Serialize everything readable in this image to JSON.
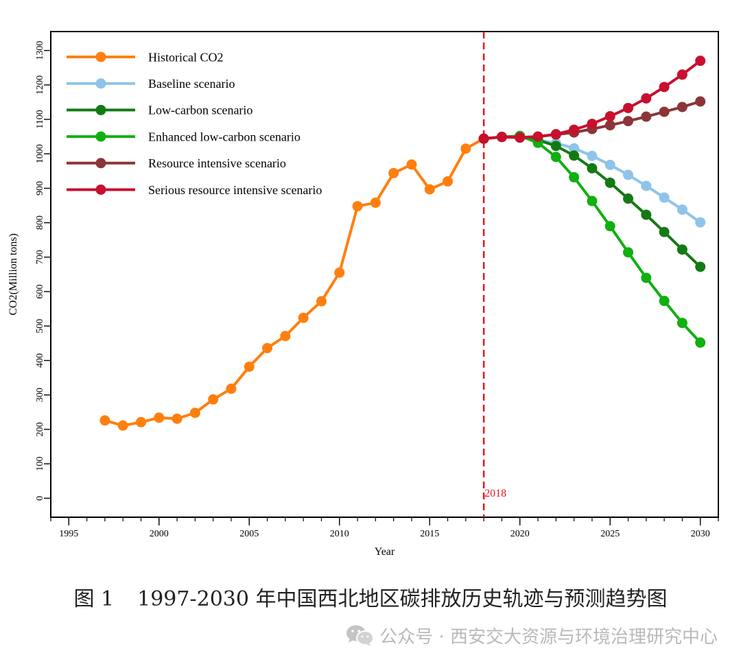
{
  "chart_data": {
    "type": "line",
    "xlabel": "Year",
    "ylabel": "CO2(Million tons)",
    "xlim": [
      1994,
      2031
    ],
    "ylim": [
      -55,
      1355
    ],
    "xticks": [
      1995,
      2000,
      2005,
      2010,
      2015,
      2020,
      2025,
      2030
    ],
    "yticks": [
      0,
      100,
      200,
      300,
      400,
      500,
      600,
      700,
      800,
      900,
      1000,
      1100,
      1200,
      1300
    ],
    "grid": false,
    "legend_position": "top-left",
    "annotation": {
      "x": 2018,
      "label": "2018",
      "style": "dashed",
      "color": "#e8141c"
    },
    "series": [
      {
        "name": "Historical CO2",
        "color": "#ff7f0e",
        "x": [
          1997,
          1998,
          1999,
          2000,
          2001,
          2002,
          2003,
          2004,
          2005,
          2006,
          2007,
          2008,
          2009,
          2010,
          2011,
          2012,
          2013,
          2014,
          2015,
          2016,
          2017,
          2018
        ],
        "values": [
          226,
          211,
          221,
          234,
          231,
          248,
          287,
          318,
          382,
          436,
          471,
          524,
          572,
          655,
          848,
          858,
          944,
          969,
          897,
          920,
          1015,
          1044
        ]
      },
      {
        "name": "Baseline scenario",
        "color": "#8fc3ea",
        "x": [
          2018,
          2019,
          2020,
          2021,
          2022,
          2023,
          2024,
          2025,
          2026,
          2027,
          2028,
          2029,
          2030
        ],
        "values": [
          1044,
          1049,
          1049,
          1040,
          1031,
          1016,
          994,
          968,
          939,
          907,
          873,
          838,
          801
        ]
      },
      {
        "name": "Low-carbon scenario",
        "color": "#137a13",
        "x": [
          2018,
          2019,
          2020,
          2021,
          2022,
          2023,
          2024,
          2025,
          2026,
          2027,
          2028,
          2029,
          2030
        ],
        "values": [
          1044,
          1049,
          1049,
          1040,
          1023,
          995,
          958,
          916,
          870,
          823,
          773,
          722,
          672
        ]
      },
      {
        "name": "Enhanced low-carbon scenario",
        "color": "#10b010",
        "x": [
          2018,
          2019,
          2020,
          2021,
          2022,
          2023,
          2024,
          2025,
          2026,
          2027,
          2028,
          2029,
          2030
        ],
        "values": [
          1044,
          1049,
          1052,
          1032,
          991,
          932,
          863,
          790,
          714,
          640,
          573,
          509,
          452
        ]
      },
      {
        "name": "Resource intensive scenario",
        "color": "#8b3538",
        "x": [
          2018,
          2019,
          2020,
          2021,
          2022,
          2023,
          2024,
          2025,
          2026,
          2027,
          2028,
          2029,
          2030
        ],
        "values": [
          1044,
          1049,
          1048,
          1050,
          1056,
          1062,
          1072,
          1083,
          1095,
          1108,
          1122,
          1136,
          1152
        ]
      },
      {
        "name": "Serious resource intensive scenario",
        "color": "#c8102e",
        "x": [
          2018,
          2019,
          2020,
          2021,
          2022,
          2023,
          2024,
          2025,
          2026,
          2027,
          2028,
          2029,
          2030
        ],
        "values": [
          1044,
          1049,
          1047,
          1050,
          1057,
          1070,
          1087,
          1109,
          1133,
          1161,
          1194,
          1230,
          1270
        ]
      }
    ]
  },
  "caption": {
    "figure_number": "图 1",
    "text": "1997-2030 年中国西北地区碳排放历史轨迹与预测趋势图"
  },
  "watermark": {
    "icon": "wechat-icon",
    "text": "公众号 · 西安交大资源与环境治理研究中心"
  }
}
